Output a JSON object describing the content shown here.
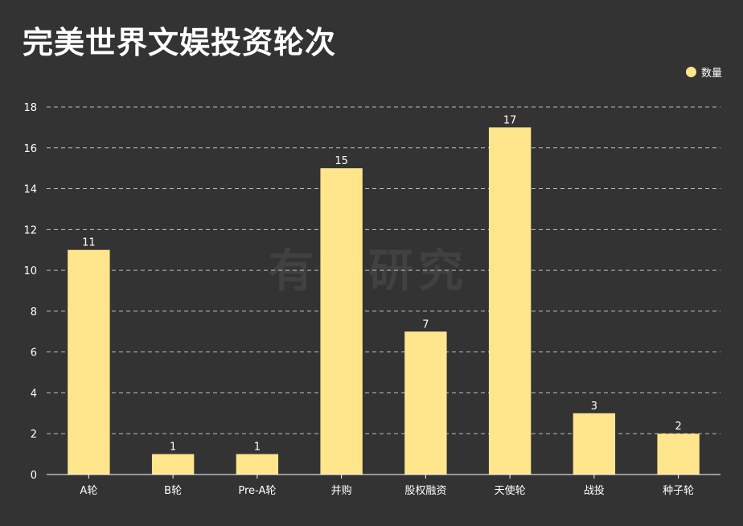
{
  "title": "完美世界文娱投资轮次",
  "watermark": "有赞研究",
  "legend": {
    "label": "数量",
    "color": "#ffe68c",
    "position": "top-right"
  },
  "colors": {
    "background": "#333333",
    "bar": "#ffe68c",
    "text": "#ffffff",
    "grid": "#bdbdbd"
  },
  "chart_data": {
    "type": "bar",
    "title": "完美世界文娱投资轮次",
    "xlabel": "",
    "ylabel": "",
    "categories": [
      "A轮",
      "B轮",
      "Pre-A轮",
      "并购",
      "股权融资",
      "天使轮",
      "战投",
      "种子轮"
    ],
    "series": [
      {
        "name": "数量",
        "values": [
          11,
          1,
          1,
          15,
          7,
          17,
          3,
          2
        ]
      }
    ],
    "ylim": [
      0,
      18
    ],
    "yticks": [
      0,
      2,
      4,
      6,
      8,
      10,
      12,
      14,
      16,
      18
    ],
    "grid": true,
    "data_labels": true
  }
}
